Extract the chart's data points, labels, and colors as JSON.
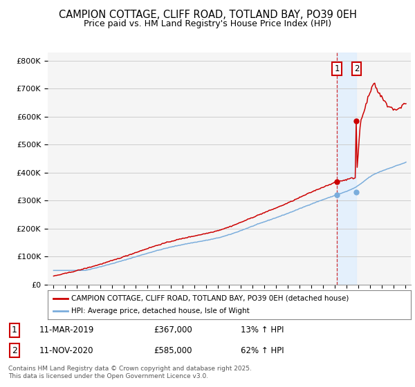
{
  "title": "CAMPION COTTAGE, CLIFF ROAD, TOTLAND BAY, PO39 0EH",
  "subtitle": "Price paid vs. HM Land Registry's House Price Index (HPI)",
  "legend_label_red": "CAMPION COTTAGE, CLIFF ROAD, TOTLAND BAY, PO39 0EH (detached house)",
  "legend_label_blue": "HPI: Average price, detached house, Isle of Wight",
  "footnote": "Contains HM Land Registry data © Crown copyright and database right 2025.\nThis data is licensed under the Open Government Licence v3.0.",
  "transaction1_label": "1",
  "transaction1_date": "11-MAR-2019",
  "transaction1_price": "£367,000",
  "transaction1_hpi": "13% ↑ HPI",
  "transaction2_label": "2",
  "transaction2_date": "11-NOV-2020",
  "transaction2_price": "£585,000",
  "transaction2_hpi": "62% ↑ HPI",
  "vline1_x": 2019.19,
  "vline2_x": 2020.86,
  "ylim": [
    0,
    830000
  ],
  "xlim": [
    1994.5,
    2025.5
  ],
  "red_color": "#cc0000",
  "blue_color": "#7aaddc",
  "vline_color": "#cc0000",
  "shade_color": "#ddeeff",
  "background_color": "#f5f5f5",
  "grid_color": "#cccccc",
  "title_fontsize": 10.5,
  "subtitle_fontsize": 9,
  "tick_fontsize": 7.5,
  "ytick_fontsize": 8
}
